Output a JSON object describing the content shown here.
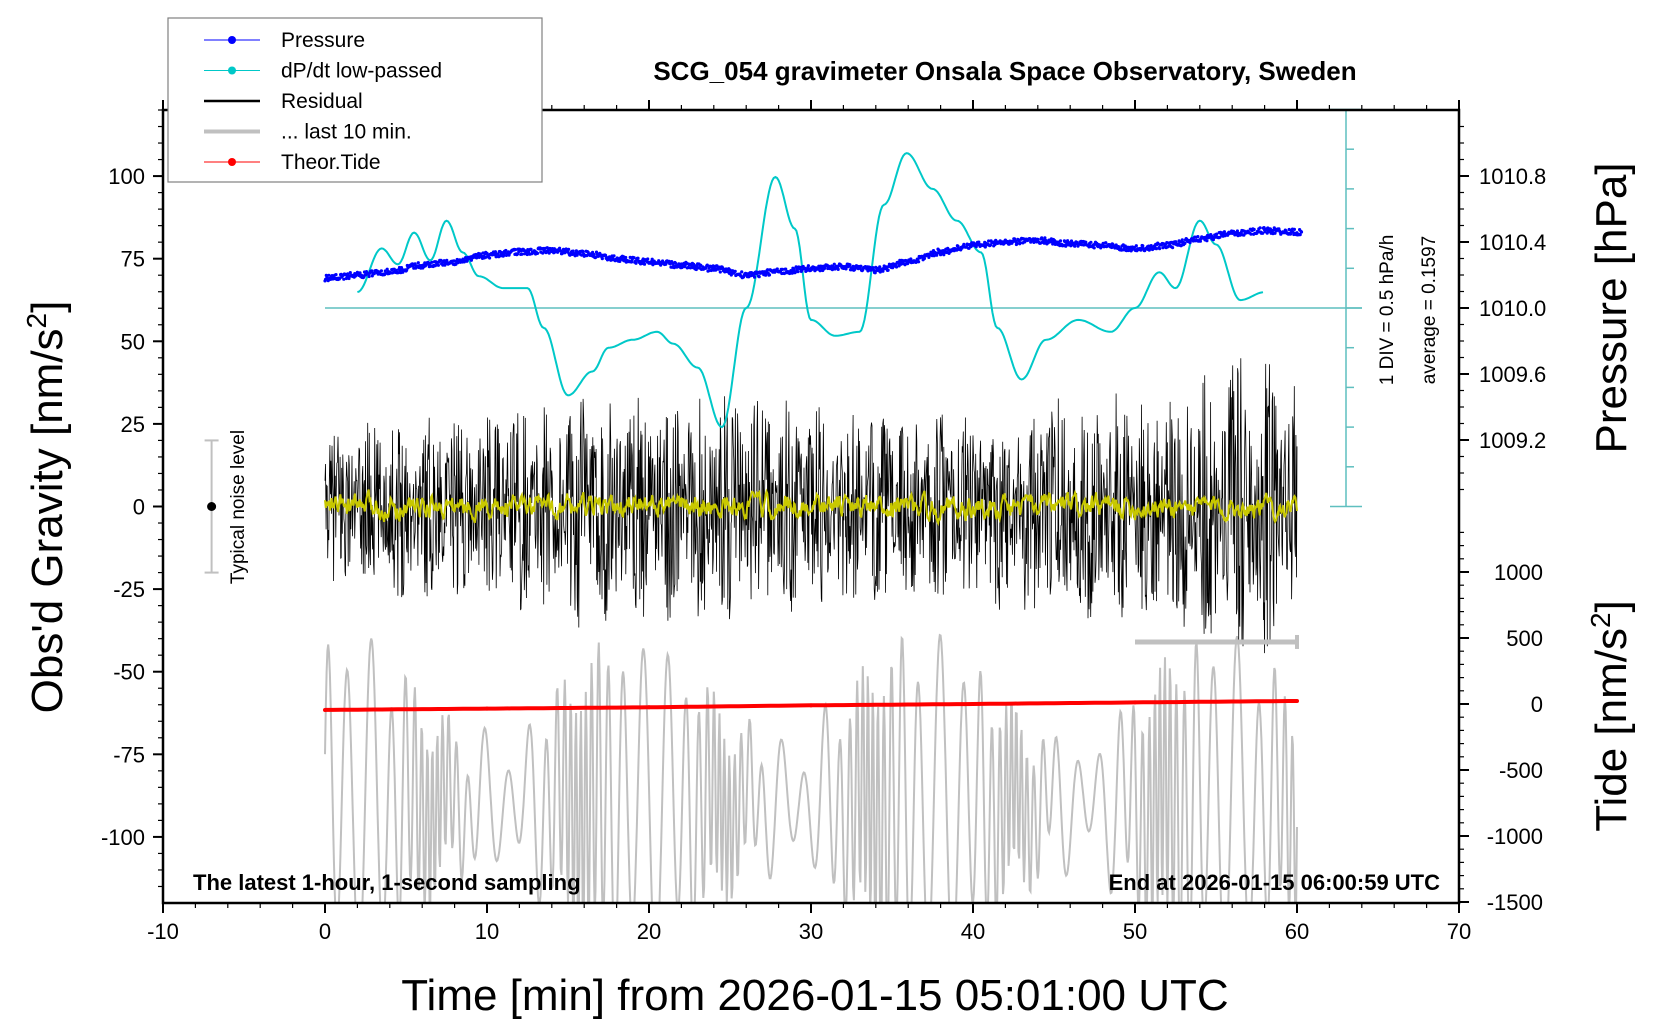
{
  "chart_data": {
    "type": "line",
    "title": "SCG_054 gravimeter Onsala Space Observatory, Sweden",
    "xlabel": "Time [min] from 2026-01-15 05:01:00 UTC",
    "ylabel_left": "Obs'd Gravity [nm/s",
    "ylabel_left_sup": "2",
    "ylabel_left_close": "]",
    "ylabel_right_pressure": "Pressure [hPa]",
    "ylabel_right_tide": "Tide [nm/s",
    "ylabel_right_tide_sup": "2",
    "ylabel_right_tide_close": "]",
    "xlim": [
      -10,
      70
    ],
    "ylim_left": [
      -120,
      120
    ],
    "pressure_axis_range": [
      1008.8,
      1011.2
    ],
    "tide_axis_range": [
      -1500,
      1300
    ],
    "x_ticks": [
      -10,
      0,
      10,
      20,
      30,
      40,
      50,
      60,
      70
    ],
    "x_tick_labels": [
      "-10",
      "0",
      "10",
      "20",
      "30",
      "40",
      "50",
      "60",
      "70"
    ],
    "y_left_ticks": [
      -100,
      -75,
      -50,
      -25,
      0,
      25,
      50,
      75,
      100
    ],
    "y_left_tick_labels": [
      "-100",
      "-75",
      "-50",
      "-25",
      "0",
      "25",
      "50",
      "75",
      "100"
    ],
    "pressure_ticks": [
      1009.2,
      1009.6,
      1010.0,
      1010.4,
      1010.8
    ],
    "pressure_tick_labels": [
      "1009.2",
      "1009.6",
      "1010.0",
      "1010.4",
      "1010.8"
    ],
    "tide_ticks": [
      -1500,
      -1000,
      -500,
      0,
      500,
      1000
    ],
    "tide_tick_labels": [
      "-1500",
      "-1000",
      "-500",
      "0",
      "500",
      "1000"
    ],
    "legend": {
      "placement": "top-left",
      "entries": [
        {
          "label": "Pressure",
          "color": "#0000ff",
          "marker": "dot"
        },
        {
          "label": "dP/dt low-passed",
          "color": "#00c8c8",
          "marker": "dot"
        },
        {
          "label": "Residual",
          "color": "#000000",
          "marker": "line"
        },
        {
          "label": "... last 10 min.",
          "color": "#c0c0c0",
          "marker": "line"
        },
        {
          "label": "Theor.Tide",
          "color": "#ff0000",
          "marker": "dot"
        }
      ]
    },
    "annotations": {
      "bottom_left": "The latest 1-hour, 1-second sampling",
      "bottom_right": "End at 2026-01-15 06:00:59 UTC",
      "noise_label": "Typical noise level",
      "dpdt_scale": "1 DIV = 0.5 hPa/h",
      "dpdt_average": "average = 0.1597"
    },
    "noise_bar": {
      "x": -7,
      "center": 0,
      "half_range": 20
    },
    "last_10_min_marker": {
      "x_start": 50,
      "x_end": 60
    },
    "series": [
      {
        "name": "Pressure",
        "axis": "pressure",
        "color": "#0000ff",
        "x": [
          0,
          2,
          4,
          6,
          8,
          10,
          12,
          14,
          16,
          18,
          20,
          22,
          24,
          26,
          28,
          30,
          32,
          34,
          36,
          38,
          40,
          42,
          44,
          46,
          48,
          50,
          52,
          54,
          56,
          58,
          60
        ],
        "values": [
          1010.18,
          1010.2,
          1010.22,
          1010.26,
          1010.28,
          1010.32,
          1010.34,
          1010.35,
          1010.33,
          1010.3,
          1010.28,
          1010.26,
          1010.24,
          1010.2,
          1010.22,
          1010.24,
          1010.25,
          1010.23,
          1010.28,
          1010.34,
          1010.38,
          1010.4,
          1010.41,
          1010.39,
          1010.38,
          1010.36,
          1010.38,
          1010.42,
          1010.45,
          1010.47,
          1010.46
        ]
      },
      {
        "name": "dP/dt low-passed",
        "axis": "dpdt_div",
        "color": "#00c8c8",
        "x": [
          2,
          3.5,
          4.5,
          5.5,
          6.5,
          7.5,
          8.5,
          9.5,
          11,
          12.5,
          13.5,
          15,
          16.5,
          17.5,
          19,
          20.5,
          21.5,
          23,
          24.5,
          26,
          27.8,
          29,
          30,
          31.5,
          33,
          34.5,
          35.9,
          37.5,
          39,
          40.5,
          41.5,
          43,
          44.5,
          46.5,
          48.5,
          50,
          51.5,
          52.5,
          54,
          55,
          56.5,
          58
        ],
        "values": [
          0.4,
          1.5,
          1.1,
          1.9,
          1.2,
          2.2,
          1.4,
          0.8,
          0.5,
          0.5,
          -0.5,
          -2.2,
          -1.6,
          -1.0,
          -0.8,
          -0.6,
          -0.9,
          -1.5,
          -3.0,
          0.0,
          3.3,
          2.0,
          -0.3,
          -0.7,
          -0.6,
          2.6,
          3.9,
          3.0,
          2.2,
          1.4,
          -0.5,
          -1.8,
          -0.8,
          -0.3,
          -0.6,
          0.0,
          0.9,
          0.5,
          2.2,
          1.6,
          0.2,
          0.4
        ]
      },
      {
        "name": "Residual",
        "axis": "left",
        "color": "#000000",
        "x_range": [
          0,
          60
        ],
        "envelope": {
          "x": [
            0,
            5,
            10,
            15,
            20,
            25,
            30,
            35,
            40,
            45,
            50,
            55,
            57,
            60
          ],
          "amplitude": [
            25,
            28,
            28,
            38,
            35,
            36,
            32,
            30,
            30,
            36,
            35,
            45,
            50,
            38
          ]
        }
      },
      {
        "name": "Residual smoothed",
        "axis": "left",
        "color": "#c8c800",
        "x_range": [
          0,
          60
        ],
        "amplitude": 4
      },
      {
        "name": "... last 10 min.",
        "axis": "left",
        "color": "#c0c0c0",
        "x_range": [
          0,
          60
        ],
        "offset": -90,
        "amplitude_range": [
          15,
          45
        ]
      },
      {
        "name": "Theor.Tide",
        "axis": "tide",
        "color": "#ff0000",
        "x": [
          0,
          10,
          20,
          30,
          40,
          50,
          60
        ],
        "values": [
          -45,
          -35,
          -25,
          -10,
          0,
          12,
          23
        ]
      }
    ]
  }
}
